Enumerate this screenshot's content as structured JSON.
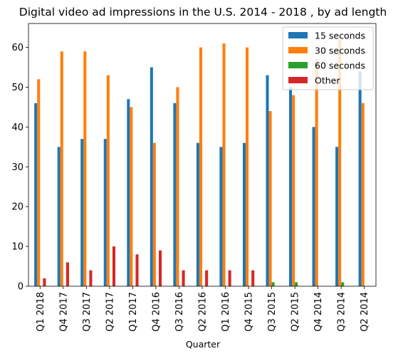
{
  "chart_data": {
    "type": "bar",
    "title": "Digital video ad impressions in the U.S. 2014 - 2018 , by ad length",
    "xlabel": "Quarter",
    "ylabel": "",
    "ylim": [
      0,
      66
    ],
    "yticks": [
      0,
      10,
      20,
      30,
      40,
      50,
      60
    ],
    "categories": [
      "Q1 2018",
      "Q4 2017",
      "Q3 2017",
      "Q2 2017",
      "Q1 2017",
      "Q4 2016",
      "Q3 2016",
      "Q2 2016",
      "Q1 2016",
      "Q4 2015",
      "Q3 2015",
      "Q2 2015",
      "Q4 2014",
      "Q3 2014",
      "Q2 2014"
    ],
    "series": [
      {
        "name": "15 seconds",
        "color": "#1f77b4",
        "values": [
          46,
          35,
          37,
          37,
          47,
          55,
          46,
          36,
          35,
          36,
          53,
          50,
          40,
          35,
          54
        ]
      },
      {
        "name": "30 seconds",
        "color": "#ff7f0e",
        "values": [
          52,
          59,
          59,
          53,
          45,
          36,
          50,
          60,
          61,
          60,
          44,
          48,
          57,
          62,
          46
        ]
      },
      {
        "name": "60 seconds",
        "color": "#2ca02c",
        "values": [
          0,
          0,
          0,
          0,
          0,
          0,
          0,
          0,
          0,
          0,
          1,
          1,
          0,
          1,
          0
        ]
      },
      {
        "name": "Other",
        "color": "#d62728",
        "values": [
          2,
          6,
          4,
          10,
          8,
          9,
          4,
          4,
          4,
          4,
          0,
          0,
          0,
          0,
          0
        ]
      }
    ],
    "grid": false,
    "legend": "top-right"
  }
}
